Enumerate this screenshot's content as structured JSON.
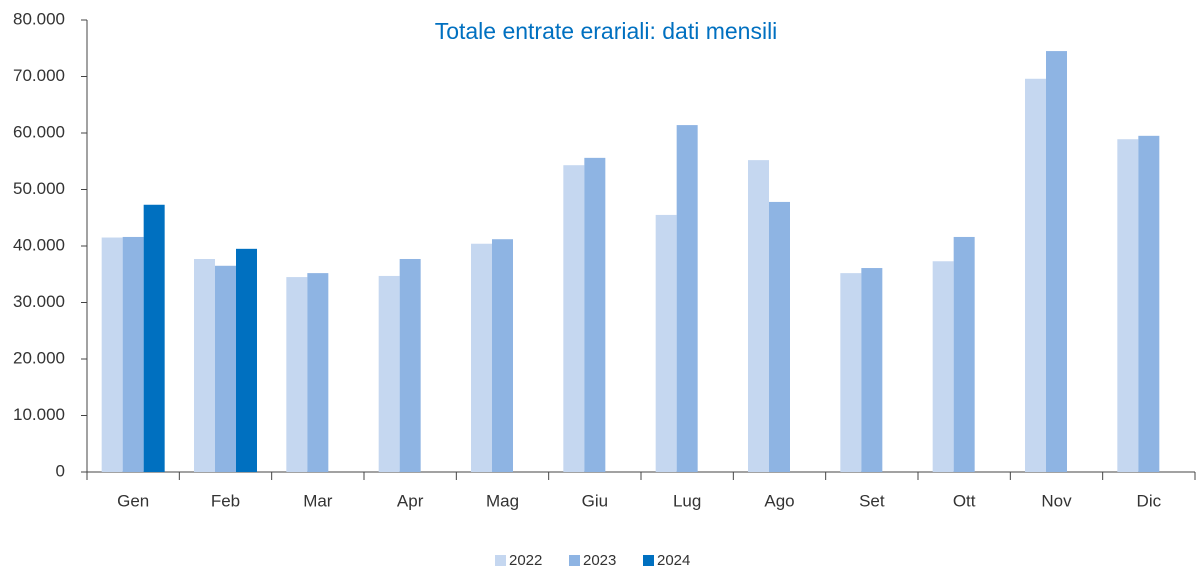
{
  "chart_data": {
    "type": "bar",
    "title": "Totale entrate erariali: dati mensili",
    "categories": [
      "Gen",
      "Feb",
      "Mar",
      "Apr",
      "Mag",
      "Giu",
      "Lug",
      "Ago",
      "Set",
      "Ott",
      "Nov",
      "Dic"
    ],
    "series": [
      {
        "name": "2022",
        "color": "#c5d7f0",
        "values": [
          41500,
          37700,
          34500,
          34700,
          40400,
          54300,
          45500,
          55200,
          35200,
          37300,
          69600,
          58900
        ]
      },
      {
        "name": "2023",
        "color": "#8eb4e3",
        "values": [
          41600,
          36500,
          35200,
          37700,
          41200,
          55600,
          61400,
          47800,
          36100,
          41600,
          74500,
          59500
        ]
      },
      {
        "name": "2024",
        "color": "#0070c0",
        "values": [
          47300,
          39500,
          null,
          null,
          null,
          null,
          null,
          null,
          null,
          null,
          null,
          null
        ]
      }
    ],
    "ylim": [
      0,
      80000
    ],
    "yticks": [
      0,
      {
        "value": 10000,
        "label": "10.000"
      },
      {
        "value": 20000,
        "label": "20.000"
      },
      {
        "value": 30000,
        "label": "30.000"
      },
      {
        "value": 40000,
        "label": "40.000"
      },
      {
        "value": 50000,
        "label": "50.000"
      },
      {
        "value": 60000,
        "label": "60.000"
      },
      {
        "value": 70000,
        "label": "70.000"
      },
      {
        "value": 80000,
        "label": "80.000"
      }
    ],
    "grid": false,
    "legend": "bottom"
  }
}
